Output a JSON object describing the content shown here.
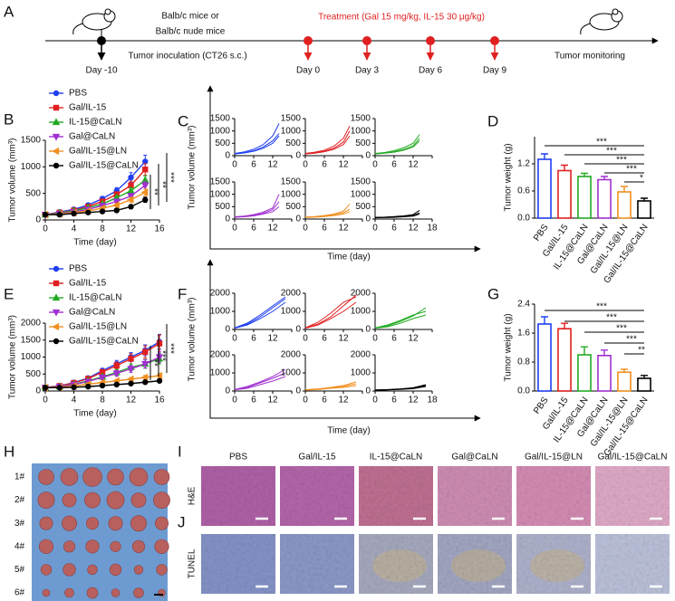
{
  "panels": [
    "A",
    "B",
    "C",
    "D",
    "E",
    "F",
    "G",
    "H",
    "I",
    "J"
  ],
  "timeline": {
    "mouse_strain": [
      "Balb/c mice or",
      "Balb/c nude mice"
    ],
    "inoculation": "Tumor inoculation (CT26 s.c.)",
    "treatment": "Treatment (Gal 15 mg/kg, IL-15 30 μg/kg)",
    "monitoring": "Tumor monitoring",
    "events": [
      "Day -10",
      "Day 0",
      "Day 3",
      "Day 6",
      "Day 9"
    ]
  },
  "chart_data": [
    {
      "type": "line",
      "xlabel": "Time (day)",
      "ylabel": "Tumor volume (mm³)",
      "x": [
        0,
        2,
        4,
        6,
        8,
        10,
        12,
        14
      ],
      "xlim": [
        0,
        16
      ],
      "xticks": [
        0,
        4,
        8,
        12,
        16
      ],
      "ylim": [
        0,
        1500
      ],
      "yticks": [
        0,
        500,
        1000,
        1500
      ],
      "series": [
        {
          "name": "PBS",
          "color": "#1f3ff0",
          "marker": "circle",
          "values": [
            100,
            150,
            200,
            280,
            400,
            550,
            800,
            1100
          ],
          "errors": [
            10,
            15,
            20,
            30,
            40,
            60,
            90,
            120
          ]
        },
        {
          "name": "Gal/IL-15",
          "color": "#e02020",
          "marker": "square",
          "values": [
            100,
            140,
            180,
            250,
            350,
            480,
            650,
            950
          ],
          "errors": [
            10,
            15,
            20,
            25,
            35,
            50,
            80,
            110
          ]
        },
        {
          "name": "IL-15@CaLN",
          "color": "#22aa22",
          "marker": "triangle",
          "values": [
            100,
            130,
            170,
            230,
            300,
            420,
            550,
            750
          ],
          "errors": [
            10,
            12,
            18,
            22,
            30,
            40,
            60,
            80
          ]
        },
        {
          "name": "Gal@CaLN",
          "color": "#a030d0",
          "marker": "triangle-down",
          "values": [
            100,
            120,
            150,
            200,
            270,
            350,
            450,
            650
          ],
          "errors": [
            10,
            12,
            15,
            20,
            25,
            35,
            50,
            70
          ]
        },
        {
          "name": "Gal/IL-15@LN",
          "color": "#f09020",
          "marker": "triangle-left",
          "values": [
            100,
            110,
            140,
            170,
            220,
            280,
            380,
            520
          ],
          "errors": [
            10,
            10,
            15,
            18,
            22,
            30,
            45,
            60
          ]
        },
        {
          "name": "Gal/IL-15@CaLN",
          "color": "#000000",
          "marker": "circle",
          "values": [
            100,
            100,
            120,
            140,
            160,
            180,
            250,
            380
          ],
          "errors": [
            10,
            10,
            12,
            15,
            18,
            22,
            30,
            50
          ]
        }
      ],
      "annotations": [
        "**",
        "**",
        "***"
      ]
    },
    {
      "type": "small-multiples",
      "xlabel": "Time (day)",
      "ylabel": "Tumor volume (mm³)",
      "x": [
        0,
        3,
        6,
        9,
        12,
        14
      ],
      "xlim": [
        0,
        18
      ],
      "xticks": [
        0,
        6,
        12,
        18
      ],
      "ylim": [
        0,
        1500
      ],
      "yticks": [
        0,
        500,
        1000,
        1500
      ],
      "panels": [
        {
          "color": "#1f3ff0",
          "lines": [
            [
              80,
              120,
              200,
              350,
              600,
              900
            ],
            [
              90,
              150,
              260,
              450,
              800,
              1300
            ],
            [
              70,
              110,
              180,
              300,
              500,
              800
            ]
          ]
        },
        {
          "color": "#e02020",
          "lines": [
            [
              80,
              120,
              180,
              300,
              550,
              1000
            ],
            [
              90,
              140,
              220,
              380,
              700,
              1200
            ],
            [
              70,
              100,
              160,
              260,
              450,
              800
            ]
          ]
        },
        {
          "color": "#22aa22",
          "lines": [
            [
              80,
              110,
              160,
              250,
              400,
              700
            ],
            [
              90,
              130,
              200,
              320,
              500,
              850
            ],
            [
              70,
              100,
              140,
              220,
              350,
              600
            ]
          ]
        },
        {
          "color": "#a030d0",
          "lines": [
            [
              80,
              110,
              150,
              230,
              380,
              700
            ],
            [
              90,
              120,
              180,
              280,
              450,
              1000
            ],
            [
              70,
              90,
              130,
              200,
              300,
              500
            ]
          ]
        },
        {
          "color": "#f09020",
          "lines": [
            [
              70,
              90,
              120,
              170,
              250,
              400
            ],
            [
              80,
              100,
              140,
              200,
              320,
              600
            ],
            [
              60,
              80,
              100,
              140,
              200,
              300
            ]
          ]
        },
        {
          "color": "#000000",
          "lines": [
            [
              60,
              70,
              90,
              110,
              150,
              250
            ],
            [
              70,
              80,
              100,
              130,
              180,
              350
            ],
            [
              50,
              60,
              70,
              90,
              120,
              200
            ]
          ]
        }
      ]
    },
    {
      "type": "bar",
      "ylabel": "Tumor weight (g)",
      "categories": [
        "PBS",
        "Gal/IL-15",
        "IL-15@CaLN",
        "Gal@CaLN",
        "Gal/IL-15@LN",
        "Gal/IL-15@CaLN"
      ],
      "colors": [
        "#1f3ff0",
        "#e02020",
        "#22aa22",
        "#a030d0",
        "#f09020",
        "#000000"
      ],
      "values": [
        1.3,
        1.05,
        0.92,
        0.85,
        0.58,
        0.38
      ],
      "errors": [
        0.12,
        0.12,
        0.07,
        0.07,
        0.12,
        0.06
      ],
      "ylim": [
        0,
        1.8
      ],
      "yticks": [
        {
          "value": 0,
          "label": "0.0"
        },
        0.6,
        1.2
      ],
      "brackets": [
        {
          "from": "PBS",
          "to": "Gal/IL-15@CaLN",
          "label": "***"
        },
        {
          "from": "Gal/IL-15",
          "to": "Gal/IL-15@CaLN",
          "label": "***"
        },
        {
          "from": "IL-15@CaLN",
          "to": "Gal/IL-15@CaLN",
          "label": "***"
        },
        {
          "from": "Gal@CaLN",
          "to": "Gal/IL-15@CaLN",
          "label": "***"
        },
        {
          "from": "Gal/IL-15@LN",
          "to": "Gal/IL-15@CaLN",
          "label": "*"
        }
      ]
    },
    {
      "type": "line",
      "xlabel": "Time (day)",
      "ylabel": "Tumor volume (mm³)",
      "x": [
        0,
        2,
        4,
        6,
        8,
        10,
        12,
        14,
        16
      ],
      "xlim": [
        0,
        16
      ],
      "xticks": [
        0,
        4,
        8,
        12,
        16
      ],
      "ylim": [
        0,
        2000
      ],
      "yticks": [
        0,
        500,
        1000,
        1500,
        2000
      ],
      "series": [
        {
          "name": "PBS",
          "color": "#1f3ff0",
          "marker": "circle",
          "values": [
            100,
            150,
            250,
            380,
            600,
            800,
            1000,
            1200,
            1450
          ],
          "errors": [
            10,
            20,
            30,
            50,
            70,
            100,
            130,
            160,
            220
          ]
        },
        {
          "name": "Gal/IL-15",
          "color": "#e02020",
          "marker": "square",
          "values": [
            100,
            150,
            240,
            360,
            560,
            750,
            950,
            1150,
            1400
          ],
          "errors": [
            10,
            20,
            30,
            50,
            70,
            100,
            150,
            180,
            250
          ]
        },
        {
          "name": "IL-15@CaLN",
          "color": "#22aa22",
          "marker": "triangle",
          "values": [
            100,
            130,
            200,
            300,
            420,
            550,
            700,
            800,
            950
          ],
          "errors": [
            10,
            15,
            25,
            40,
            60,
            80,
            100,
            130,
            150
          ]
        },
        {
          "name": "Gal@CaLN",
          "color": "#a030d0",
          "marker": "triangle-down",
          "values": [
            100,
            130,
            190,
            280,
            400,
            520,
            650,
            800,
            1000
          ],
          "errors": [
            10,
            15,
            25,
            40,
            60,
            80,
            100,
            120,
            150
          ]
        },
        {
          "name": "Gal/IL-15@LN",
          "color": "#f09020",
          "marker": "triangle-left",
          "values": [
            100,
            110,
            150,
            200,
            250,
            300,
            350,
            400,
            450
          ],
          "errors": [
            10,
            10,
            20,
            25,
            30,
            40,
            50,
            60,
            70
          ]
        },
        {
          "name": "Gal/IL-15@CaLN",
          "color": "#000000",
          "marker": "circle",
          "values": [
            100,
            100,
            110,
            130,
            160,
            190,
            220,
            260,
            300
          ],
          "errors": [
            10,
            10,
            12,
            15,
            20,
            25,
            30,
            35,
            50
          ]
        }
      ],
      "annotations": [
        "**",
        "***",
        "***"
      ]
    },
    {
      "type": "small-multiples",
      "xlabel": "Time (day)",
      "ylabel": "Tumor volume (mm³)",
      "x": [
        0,
        4,
        8,
        12,
        16
      ],
      "xlim": [
        0,
        18
      ],
      "xticks": [
        0,
        6,
        12,
        18
      ],
      "ylim": [
        0,
        2000
      ],
      "yticks": [
        0,
        1000,
        2000
      ],
      "panels": [
        {
          "color": "#1f3ff0",
          "lines": [
            [
              80,
              300,
              700,
              1200,
              1700
            ],
            [
              90,
              350,
              800,
              1300,
              1800
            ],
            [
              70,
              250,
              600,
              1000,
              1500
            ]
          ]
        },
        {
          "color": "#e02020",
          "lines": [
            [
              80,
              300,
              700,
              1300,
              1900
            ],
            [
              90,
              400,
              900,
              1500,
              1800
            ],
            [
              70,
              250,
              600,
              1000,
              1500
            ]
          ]
        },
        {
          "color": "#22aa22",
          "lines": [
            [
              80,
              200,
              450,
              750,
              1200
            ],
            [
              90,
              250,
              500,
              800,
              1000
            ],
            [
              70,
              150,
              350,
              600,
              800
            ]
          ]
        },
        {
          "color": "#a030d0",
          "lines": [
            [
              80,
              250,
              500,
              800,
              1200
            ],
            [
              90,
              200,
              450,
              700,
              1000
            ],
            [
              70,
              150,
              350,
              550,
              800
            ]
          ]
        },
        {
          "color": "#f09020",
          "lines": [
            [
              60,
              100,
              200,
              300,
              500
            ],
            [
              70,
              120,
              180,
              250,
              400
            ],
            [
              50,
              80,
              150,
              200,
              300
            ]
          ]
        },
        {
          "color": "#000000",
          "lines": [
            [
              50,
              70,
              100,
              150,
              300
            ],
            [
              60,
              80,
              120,
              180,
              350
            ],
            [
              40,
              60,
              90,
              130,
              250
            ]
          ]
        }
      ]
    },
    {
      "type": "bar",
      "ylabel": "Tumor weight (g)",
      "categories": [
        "PBS",
        "Gal/IL-15",
        "IL-15@CaLN",
        "Gal@CaLN",
        "Gal/IL-15@LN",
        "Gal/IL-15@CaLN"
      ],
      "colors": [
        "#1f3ff0",
        "#e02020",
        "#22aa22",
        "#a030d0",
        "#f09020",
        "#000000"
      ],
      "values": [
        1.85,
        1.72,
        1.0,
        0.98,
        0.52,
        0.35
      ],
      "errors": [
        0.2,
        0.15,
        0.22,
        0.15,
        0.08,
        0.08
      ],
      "ylim": [
        0,
        2.4
      ],
      "yticks": [
        {
          "value": 0,
          "label": "0.0"
        },
        0.8,
        1.6,
        2.4
      ],
      "brackets": [
        {
          "from": "PBS",
          "to": "Gal/IL-15@CaLN",
          "label": "***"
        },
        {
          "from": "Gal/IL-15",
          "to": "Gal/IL-15@CaLN",
          "label": "***"
        },
        {
          "from": "IL-15@CaLN",
          "to": "Gal/IL-15@CaLN",
          "label": "***"
        },
        {
          "from": "Gal@CaLN",
          "to": "Gal/IL-15@CaLN",
          "label": "***"
        },
        {
          "from": "Gal/IL-15@LN",
          "to": "Gal/IL-15@CaLN",
          "label": "**"
        }
      ]
    }
  ],
  "photo": {
    "rows": [
      "1#",
      "2#",
      "3#",
      "4#",
      "5#",
      "6#"
    ]
  },
  "histology": {
    "columns": [
      "PBS",
      "Gal/IL-15",
      "IL-15@CaLN",
      "Gal@CaLN",
      "Gal/IL-15@LN",
      "Gal/IL-15@CaLN"
    ],
    "rows": [
      "H&E",
      "TUNEL"
    ]
  }
}
